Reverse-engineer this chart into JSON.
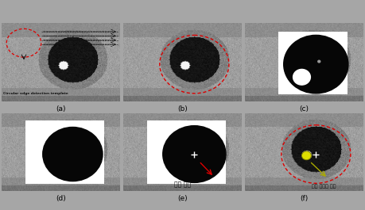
{
  "figure_size": [
    4.59,
    2.65
  ],
  "dpi": 100,
  "bg_gray": 0.65,
  "panel_label_fontsize": 6.5,
  "annotation_a": "Circular edge detection template",
  "annotation_e": "동공 중심",
  "annotation_f": "조명 반사광 중심",
  "red_color": "#dd0000",
  "yellow_color": "#cccc00",
  "white_color": "#ffffff",
  "black_color": "#000000"
}
